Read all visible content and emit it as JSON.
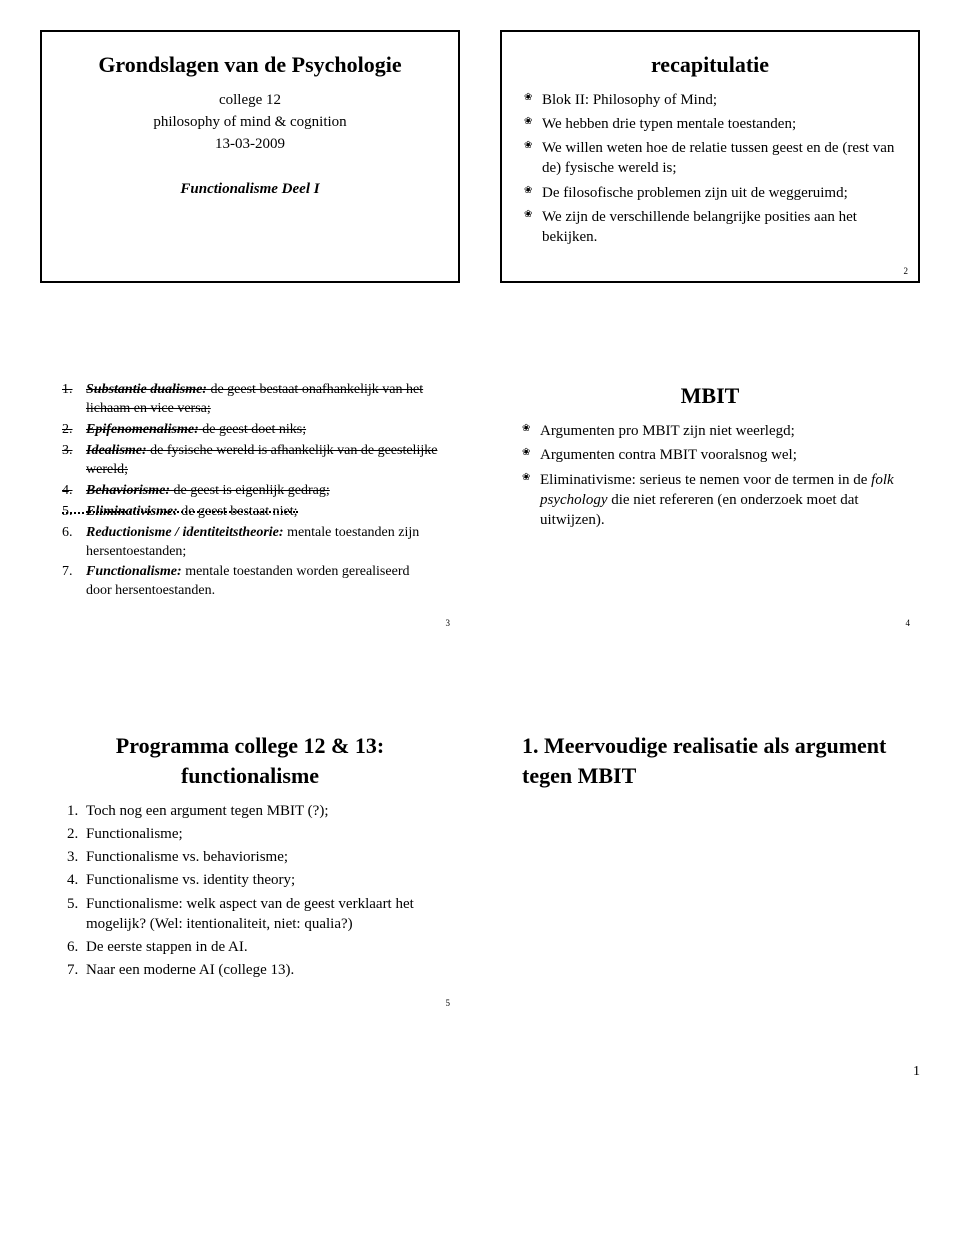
{
  "page_number": "1",
  "slide1": {
    "title": "Grondslagen van de Psychologie",
    "line1": "college 12",
    "line2": "philosophy of mind & cognition",
    "line3": "13-03-2009",
    "line4": "Functionalisme Deel I"
  },
  "slide2": {
    "title": "recapitulatie",
    "items": [
      "Blok II: Philosophy of Mind;",
      "We hebben drie typen mentale toestanden;",
      "We willen weten hoe de relatie tussen geest en de (rest van de) fysische wereld is;",
      "De filosofische problemen zijn uit de weggeruimd;",
      "We zijn de verschillende belangrijke posities aan het bekijken."
    ],
    "num": "2"
  },
  "slide3": {
    "items": [
      {
        "n": "1.",
        "pre": "Substantie dualisme:",
        "rest": " de geest bestaat onafhankelijk van het lichaam en vice versa;",
        "strike": true
      },
      {
        "n": "2.",
        "pre": "Epifenomenalisme:",
        "rest": " de geest doet niks;",
        "strike": true
      },
      {
        "n": "3.",
        "pre": "Idealisme:",
        "rest": " de fysische wereld is afhankelijk van de geestelijke wereld;",
        "strike": true
      },
      {
        "n": "4.",
        "pre": "Behaviorisme:",
        "rest": " de geest is eigenlijk gedrag;",
        "strike": true
      },
      {
        "n": "5.",
        "pre": "Eliminativisme:",
        "rest": " de geest bestaat niet;",
        "dotted": true
      },
      {
        "n": "6.",
        "pre": "Reductionisme / identiteitstheorie:",
        "rest": " mentale toestanden zijn hersentoestanden;",
        "strike": false
      },
      {
        "n": "7.",
        "pre": "Functionalisme:",
        "rest": " mentale toestanden worden gerealiseerd door hersentoestanden.",
        "strike": false
      }
    ],
    "num": "3"
  },
  "slide4": {
    "title": "MBIT",
    "items": [
      "Argumenten pro MBIT zijn niet weerlegd;",
      "Argumenten contra MBIT vooralsnog wel;",
      "Eliminativisme: serieus te nemen voor de termen in de <i>folk psychology</i> die niet refereren (en onderzoek moet dat uitwijzen)."
    ],
    "num": "4"
  },
  "slide5": {
    "title": "Programma college 12 & 13: functionalisme",
    "items": [
      "Toch nog een argument tegen MBIT (?);",
      "Functionalisme;",
      "Functionalisme vs. behaviorisme;",
      "Functionalisme vs. identity theory;",
      "Functionalisme: welk aspect van de geest verklaart het mogelijk? (Wel: itentionaliteit, niet: qualia?)",
      "De eerste stappen in de AI.",
      "Naar een moderne AI (college 13)."
    ],
    "num": "5"
  },
  "slide6": {
    "title": "1. Meervoudige realisatie als argument tegen MBIT"
  }
}
